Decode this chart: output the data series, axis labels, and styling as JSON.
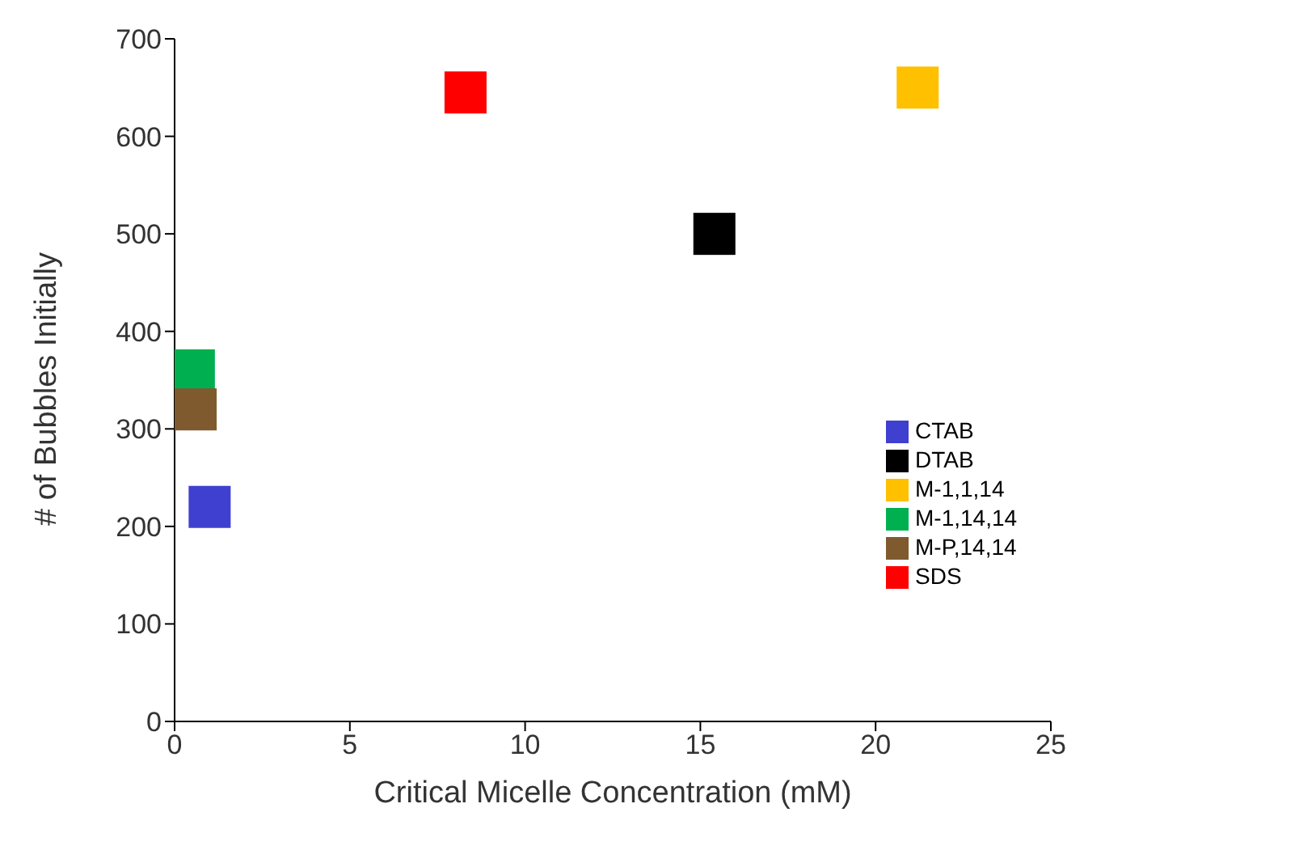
{
  "chart_data": {
    "type": "scatter",
    "xlabel": "Critical Micelle Concentration (mM)",
    "ylabel": "# of Bubbles Initially",
    "xlim": [
      0,
      25
    ],
    "xticks": [
      0,
      5,
      10,
      15,
      20,
      25
    ],
    "ylim": [
      0,
      700
    ],
    "yticks": [
      0,
      100,
      200,
      300,
      400,
      500,
      600,
      700
    ],
    "grid": false,
    "legend": "right",
    "marker": "square",
    "series": [
      {
        "name": "DTAB",
        "color": "#000000",
        "x": [
          15.4
        ],
        "values": [
          500
        ]
      },
      {
        "name": "SDS",
        "color": "#ff0000",
        "x": [
          8.3
        ],
        "values": [
          645
        ]
      },
      {
        "name": "CTAB",
        "color": "#4040d0",
        "x": [
          1.0
        ],
        "values": [
          220
        ]
      },
      {
        "name": "M-1,14,14",
        "color": "#00b050",
        "x": [
          0.55
        ],
        "values": [
          360
        ]
      },
      {
        "name": "M-P,14,14",
        "color": "#7f5a2e",
        "x": [
          0.6
        ],
        "values": [
          320
        ]
      },
      {
        "name": "M-1,1,14",
        "color": "#ffc000",
        "x": [
          21.2
        ],
        "values": [
          650
        ]
      }
    ]
  }
}
